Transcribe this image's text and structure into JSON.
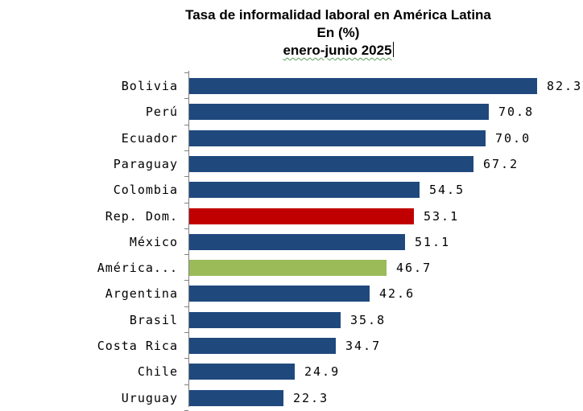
{
  "chart_data": {
    "type": "bar",
    "orientation": "horizontal",
    "title": "Tasa de informalidad laboral en América Latina",
    "subtitle_lines": [
      "En (%)",
      "enero-junio 2025"
    ],
    "xlabel": "",
    "ylabel": "",
    "grid": false,
    "legend": null,
    "xlim": [
      0,
      85
    ],
    "categories": [
      "Bolivia",
      "Perú",
      "Ecuador",
      "Paraguay",
      "Colombia",
      "Rep. Dom.",
      "México",
      "América...",
      "Argentina",
      "Brasil",
      "Costa Rica",
      "Chile",
      "Uruguay"
    ],
    "values": [
      82.3,
      70.8,
      70.0,
      67.2,
      54.5,
      53.1,
      51.1,
      46.7,
      42.6,
      35.8,
      34.7,
      24.9,
      22.3
    ],
    "value_labels": [
      "82.3",
      "70.8",
      "70.0",
      "67.2",
      "54.5",
      "53.1",
      "51.1",
      "46.7",
      "42.6",
      "35.8",
      "34.7",
      "24.9",
      "22.3"
    ],
    "bar_colors": [
      "#1f497d",
      "#1f497d",
      "#1f497d",
      "#1f497d",
      "#1f497d",
      "#c00000",
      "#1f497d",
      "#9bbb59",
      "#1f497d",
      "#1f497d",
      "#1f497d",
      "#1f497d",
      "#1f497d"
    ]
  },
  "title": {
    "line1": "Tasa de informalidad laboral en América Latina",
    "line2": "En (%)",
    "line3": "enero-junio 2025"
  },
  "colors": {
    "default_bar": "#1f497d",
    "highlight_country": "#c00000",
    "regional_average": "#9bbb59",
    "axis": "#808080"
  }
}
